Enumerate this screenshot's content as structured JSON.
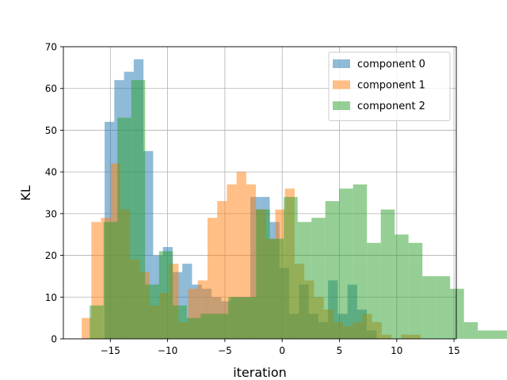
{
  "chart_data": {
    "type": "bar",
    "subtype": "overlapping-histogram",
    "xlabel": "iteration",
    "ylabel": "KL",
    "xlim": [
      -19.1,
      15.2
    ],
    "ylim": [
      0,
      70
    ],
    "xticks": [
      -15,
      -10,
      -5,
      0,
      5,
      10,
      15
    ],
    "xtick_labels": [
      "−15",
      "−10",
      "−5",
      "0",
      "5",
      "10",
      "15"
    ],
    "yticks": [
      0,
      10,
      20,
      30,
      40,
      50,
      60,
      70
    ],
    "ytick_labels": [
      "0",
      "10",
      "20",
      "30",
      "40",
      "50",
      "60",
      "70"
    ],
    "grid": true,
    "legend_position": "upper right",
    "series": [
      {
        "name": "component 0",
        "color": "#1f77b4",
        "alpha": 0.5,
        "x_start": -15.5,
        "bin_width": 0.848,
        "values": [
          52,
          62,
          64,
          67,
          45,
          20,
          22,
          16,
          18,
          13,
          12,
          10,
          9,
          10,
          10,
          34,
          34,
          28,
          17,
          6,
          13,
          6,
          4,
          14,
          6,
          13,
          7,
          2
        ]
      },
      {
        "name": "component 1",
        "color": "#ff7f0e",
        "alpha": 0.5,
        "x_start": -17.5,
        "bin_width": 0.845,
        "values": [
          5,
          28,
          29,
          42,
          31,
          19,
          16,
          8,
          11,
          18,
          4,
          12,
          14,
          29,
          33,
          37,
          40,
          37,
          31,
          24,
          31,
          36,
          18,
          14,
          10,
          7,
          4,
          3,
          4,
          6,
          4,
          1,
          0,
          1,
          1
        ]
      },
      {
        "name": "component 2",
        "color": "#2ca02c",
        "alpha": 0.5,
        "x_start": -16.8,
        "bin_width": 1.21,
        "values": [
          8,
          28,
          53,
          62,
          13,
          21,
          8,
          5,
          6,
          6,
          10,
          10,
          31,
          24,
          34,
          28,
          29,
          33,
          36,
          37,
          23,
          31,
          25,
          23,
          15,
          15,
          12,
          4,
          2,
          2,
          2
        ]
      }
    ]
  }
}
